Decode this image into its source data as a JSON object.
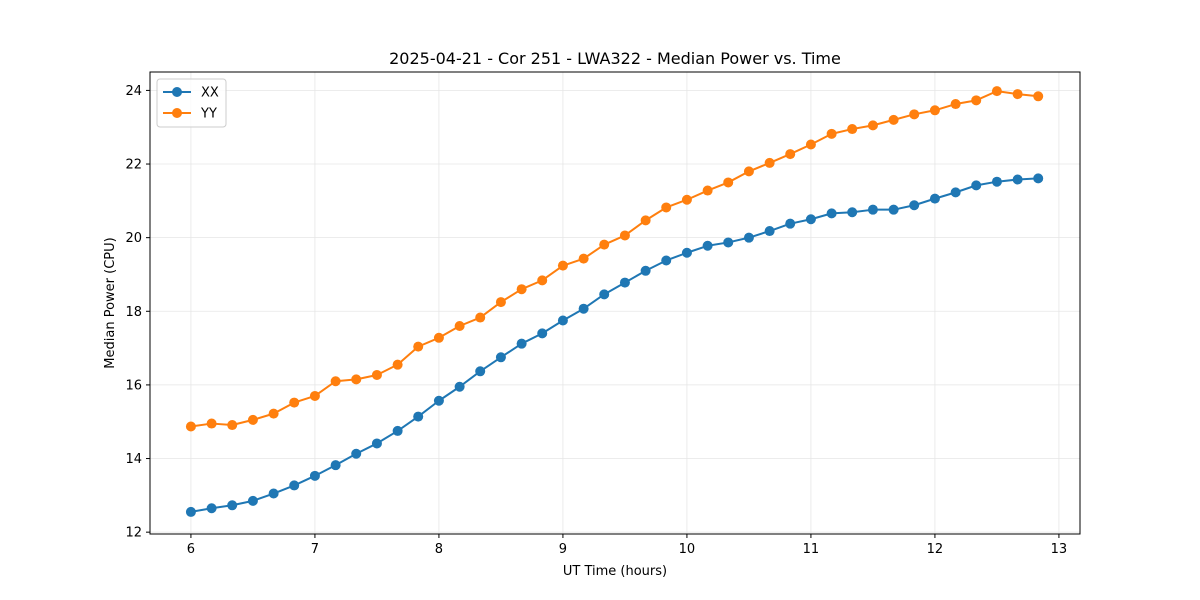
{
  "chart_data": {
    "type": "line",
    "title": "2025-04-21 - Cor 251 - LWA322 - Median Power vs. Time",
    "xlabel": "UT Time (hours)",
    "ylabel": "Median Power (CPU)",
    "xlim": [
      5.67,
      13.17
    ],
    "ylim": [
      11.95,
      24.5
    ],
    "xticks": [
      6,
      7,
      8,
      9,
      10,
      11,
      12,
      13
    ],
    "yticks": [
      12,
      14,
      16,
      18,
      20,
      22,
      24
    ],
    "grid": true,
    "legend_position": "top-left",
    "x": [
      6.0,
      6.167,
      6.333,
      6.5,
      6.667,
      6.833,
      7.0,
      7.167,
      7.333,
      7.5,
      7.667,
      7.833,
      8.0,
      8.167,
      8.333,
      8.5,
      8.667,
      8.833,
      9.0,
      9.167,
      9.333,
      9.5,
      9.667,
      9.833,
      10.0,
      10.167,
      10.333,
      10.5,
      10.667,
      10.833,
      11.0,
      11.167,
      11.333,
      11.5,
      11.667,
      11.833,
      12.0,
      12.167,
      12.333,
      12.5,
      12.667,
      12.833
    ],
    "series": [
      {
        "name": "XX",
        "color": "#1f77b4",
        "values": [
          12.55,
          12.65,
          12.73,
          12.85,
          13.05,
          13.27,
          13.53,
          13.82,
          14.13,
          14.41,
          14.75,
          15.14,
          15.57,
          15.95,
          16.37,
          16.75,
          17.12,
          17.4,
          17.75,
          18.07,
          18.46,
          18.78,
          19.1,
          19.38,
          19.59,
          19.78,
          19.87,
          20.0,
          20.18,
          20.38,
          20.5,
          20.66,
          20.69,
          20.76,
          20.76,
          20.88,
          21.06,
          21.23,
          21.42,
          21.52,
          21.58,
          21.61
        ]
      },
      {
        "name": "YY",
        "color": "#ff7f0e",
        "values": [
          14.87,
          14.95,
          14.91,
          15.05,
          15.22,
          15.52,
          15.7,
          16.1,
          16.15,
          16.27,
          16.55,
          17.04,
          17.28,
          17.6,
          17.83,
          18.25,
          18.6,
          18.84,
          19.24,
          19.43,
          19.81,
          20.06,
          20.47,
          20.82,
          21.03,
          21.28,
          21.5,
          21.8,
          22.03,
          22.27,
          22.53,
          22.82,
          22.95,
          23.05,
          23.2,
          23.35,
          23.46,
          23.63,
          23.73,
          23.98,
          23.9,
          23.84
        ]
      }
    ]
  }
}
